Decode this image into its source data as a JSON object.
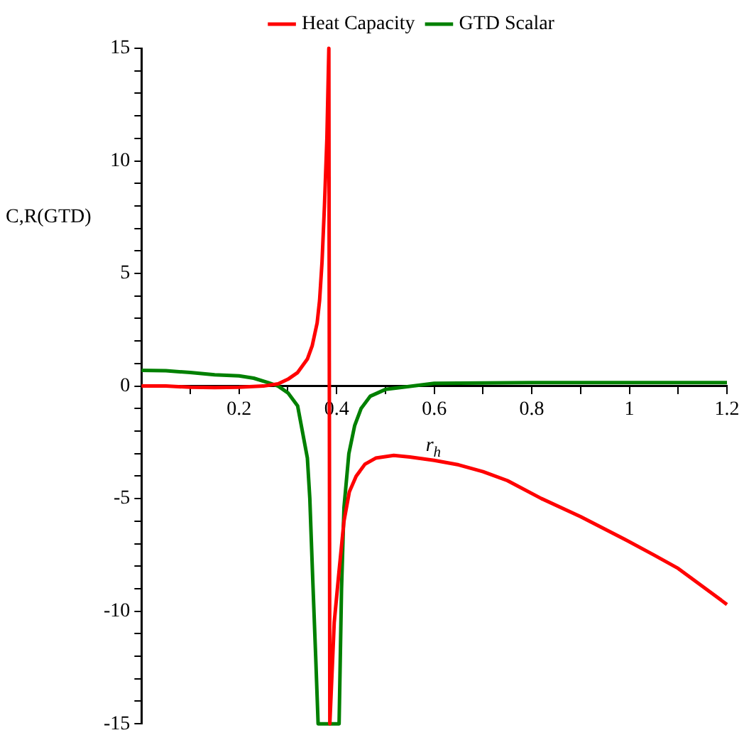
{
  "chart_data": {
    "type": "line",
    "xlabel": "r$_{h}$",
    "ylabel": "C,R(GTD)",
    "xlim": [
      0,
      1.2
    ],
    "ylim": [
      -15,
      15
    ],
    "xticks": [
      {
        "value": 0.1,
        "label": null
      },
      0.2,
      {
        "value": 0.3,
        "label": null
      },
      0.4,
      {
        "value": 0.5,
        "label": null
      },
      0.6,
      {
        "value": 0.7,
        "label": null
      },
      0.8,
      {
        "value": 0.9,
        "label": null
      },
      1,
      {
        "value": 1.1,
        "label": null
      },
      1.2
    ],
    "yticks": [
      -15,
      {
        "value": -14,
        "label": null
      },
      {
        "value": -13,
        "label": null
      },
      {
        "value": -12,
        "label": null
      },
      {
        "value": -11,
        "label": null
      },
      -10,
      {
        "value": -9,
        "label": null
      },
      {
        "value": -8,
        "label": null
      },
      {
        "value": -7,
        "label": null
      },
      {
        "value": -6,
        "label": null
      },
      -5,
      {
        "value": -4,
        "label": null
      },
      {
        "value": -3,
        "label": null
      },
      {
        "value": -2,
        "label": null
      },
      {
        "value": -1,
        "label": null
      },
      0,
      {
        "value": 1,
        "label": null
      },
      {
        "value": 2,
        "label": null
      },
      {
        "value": 3,
        "label": null
      },
      {
        "value": 4,
        "label": null
      },
      5,
      {
        "value": 6,
        "label": null
      },
      {
        "value": 7,
        "label": null
      },
      {
        "value": 8,
        "label": null
      },
      {
        "value": 9,
        "label": null
      },
      10,
      {
        "value": 11,
        "label": null
      },
      {
        "value": 12,
        "label": null
      },
      {
        "value": 13,
        "label": null
      },
      {
        "value": 14,
        "label": null
      },
      15
    ],
    "grid": false,
    "legend": "top",
    "marker": "none",
    "line_style": "solid",
    "series": [
      {
        "name": "Heat Capacity",
        "color": "#ff0000",
        "x": [
          0,
          0.05,
          0.1,
          0.15,
          0.2,
          0.25,
          0.28,
          0.3,
          0.32,
          0.34,
          0.35,
          0.36,
          0.365,
          0.37,
          0.375,
          0.38,
          0.384,
          0.386,
          0.39,
          0.395,
          0.405,
          0.415,
          0.426,
          0.44,
          0.458,
          0.48,
          0.517,
          0.55,
          0.6,
          0.65,
          0.7,
          0.75,
          0.82,
          0.9,
          0.99,
          1.05,
          1.1,
          1.15,
          1.2
        ],
        "values": [
          0,
          0,
          -0.05,
          -0.07,
          -0.05,
          0,
          0.1,
          0.3,
          0.6,
          1.2,
          1.8,
          2.8,
          3.8,
          5.5,
          8,
          11,
          15,
          -15,
          -13,
          -10.5,
          -8.2,
          -6,
          -4.7,
          -4,
          -3.47,
          -3.2,
          -3.08,
          -3.15,
          -3.3,
          -3.5,
          -3.8,
          -4.2,
          -5,
          -5.8,
          -6.8,
          -7.5,
          -8.1,
          -8.9,
          -9.7
        ]
      },
      {
        "name": "GTD Scalar",
        "color": "#008000",
        "x": [
          0,
          0.05,
          0.1,
          0.15,
          0.2,
          0.23,
          0.26,
          0.28,
          0.3,
          0.32,
          0.34,
          0.345,
          0.351,
          0.357,
          0.362,
          0.405,
          0.41,
          0.415,
          0.425,
          0.437,
          0.45,
          0.469,
          0.5,
          0.53,
          0.6,
          0.8,
          1,
          1.2
        ],
        "values": [
          0.7,
          0.68,
          0.6,
          0.5,
          0.45,
          0.35,
          0.15,
          0,
          -0.3,
          -0.88,
          -3.2,
          -5,
          -8.6,
          -12,
          -15,
          -15,
          -9,
          -5.4,
          -3,
          -1.75,
          -1,
          -0.45,
          -0.15,
          -0.07,
          0.12,
          0.15,
          0.15,
          0.15
        ]
      }
    ]
  }
}
